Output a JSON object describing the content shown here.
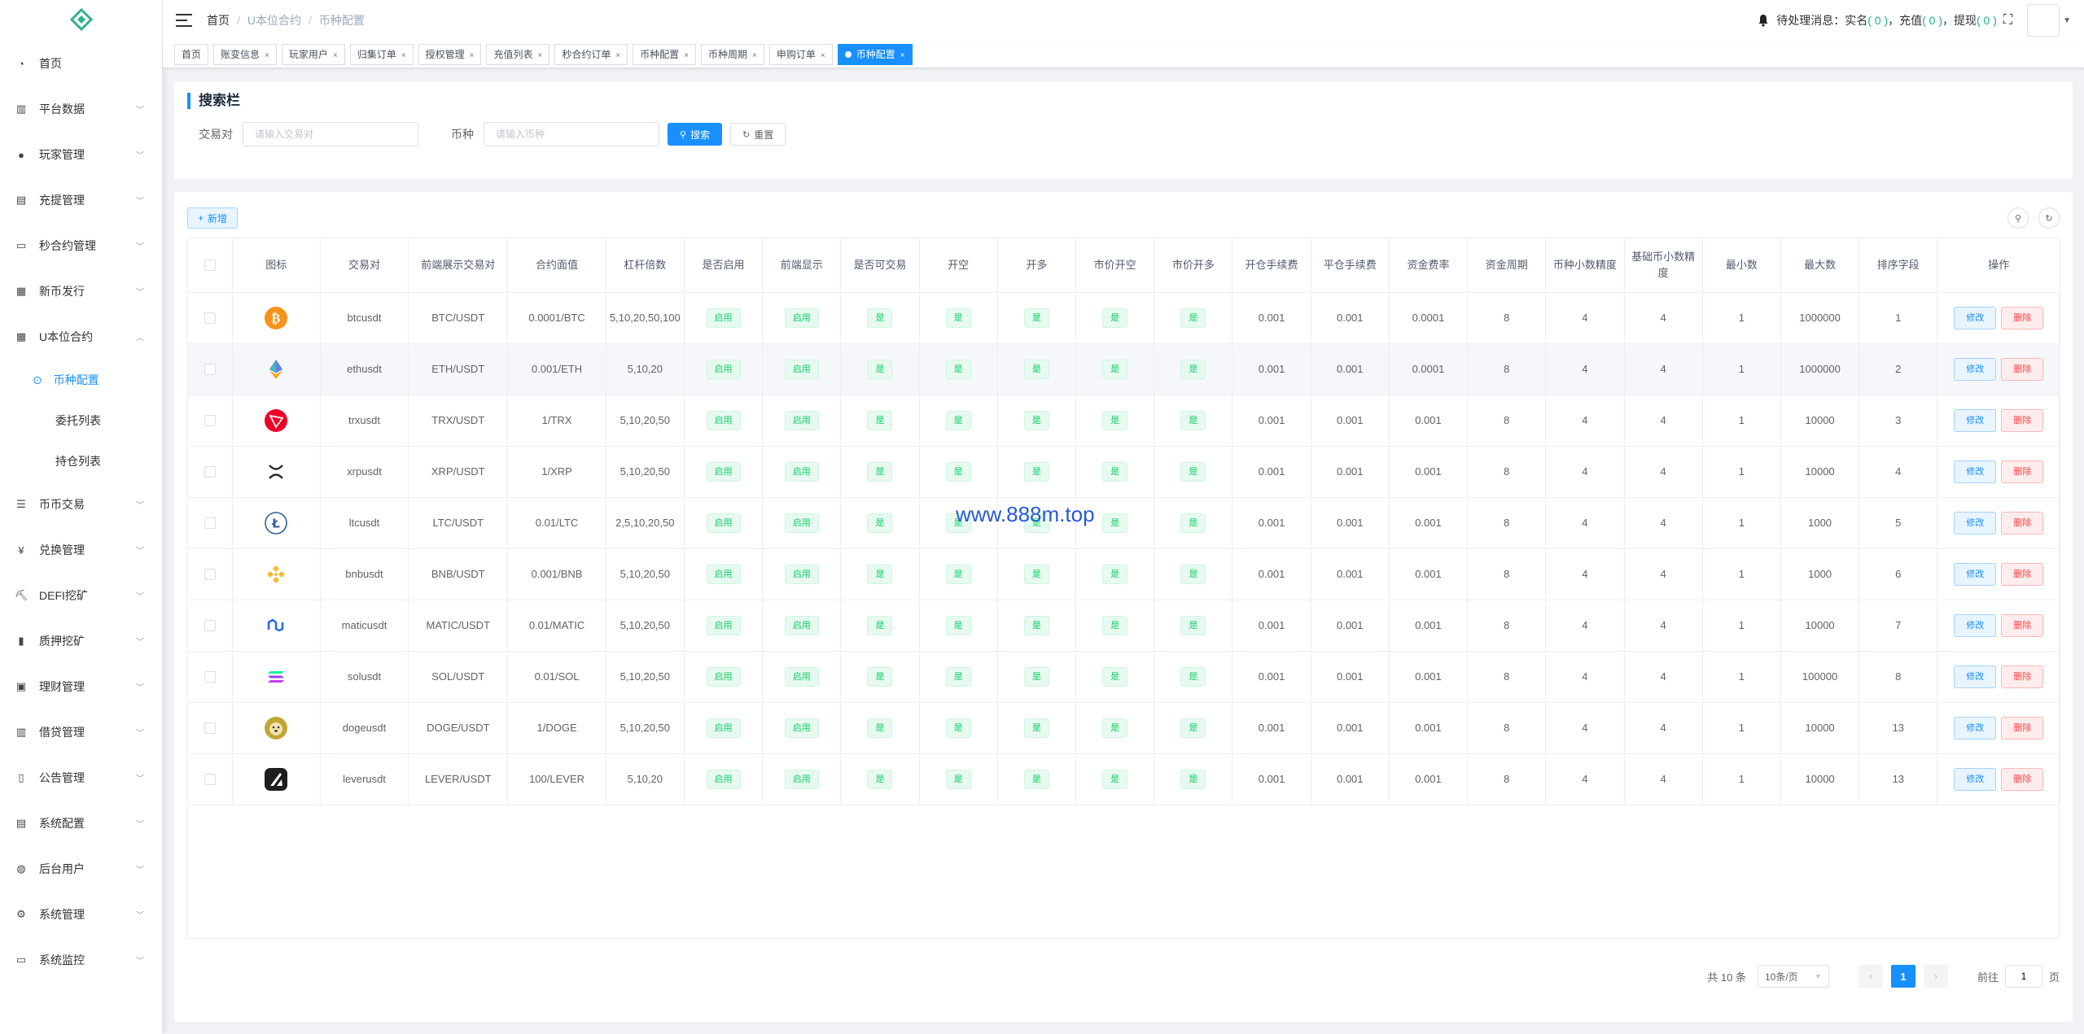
{
  "sidebar": {
    "items": [
      {
        "label": "首页",
        "icon": "dashboard-icon",
        "arrow": false
      },
      {
        "label": "平台数据",
        "icon": "chart-icon",
        "arrow": true
      },
      {
        "label": "玩家管理",
        "icon": "user-icon",
        "arrow": true
      },
      {
        "label": "充提管理",
        "icon": "wallet-icon",
        "arrow": true
      },
      {
        "label": "秒合约管理",
        "icon": "monitor-icon",
        "arrow": true
      },
      {
        "label": "新币发行",
        "icon": "coin-icon",
        "arrow": true
      },
      {
        "label": "U本位合约",
        "icon": "grid-icon",
        "arrow": true,
        "expanded": true
      }
    ],
    "submenu": [
      {
        "label": "币种配置",
        "active": true
      },
      {
        "label": "委托列表",
        "active": false
      },
      {
        "label": "持仓列表",
        "active": false
      }
    ],
    "items_after": [
      {
        "label": "币币交易",
        "icon": "list-icon"
      },
      {
        "label": "兑换管理",
        "icon": "yen-icon"
      },
      {
        "label": "DEFI挖矿",
        "icon": "mining-icon"
      },
      {
        "label": "质押挖矿",
        "icon": "bar-chart-icon"
      },
      {
        "label": "理财管理",
        "icon": "finance-icon"
      },
      {
        "label": "借贷管理",
        "icon": "loan-icon"
      },
      {
        "label": "公告管理",
        "icon": "book-icon"
      },
      {
        "label": "系统配置",
        "icon": "config-icon"
      },
      {
        "label": "后台用户",
        "icon": "admin-user-icon"
      },
      {
        "label": "系统管理",
        "icon": "gear-icon"
      },
      {
        "label": "系统监控",
        "icon": "monitor-icon"
      }
    ]
  },
  "header": {
    "breadcrumb": [
      "首页",
      "U本位合约",
      "币种配置"
    ],
    "pending_label": "待处理消息：",
    "realname_label": "实名",
    "realname_count": "( 0 )",
    "recharge_label": "充值",
    "recharge_count": "( 0 )",
    "withdraw_label": "提现",
    "withdraw_count": "( 0 )",
    "sep": "，"
  },
  "tags": [
    {
      "label": "账变信息",
      "active": false
    },
    {
      "label": "玩家用户",
      "active": false
    },
    {
      "label": "归集订单",
      "active": false
    },
    {
      "label": "授权管理",
      "active": false
    },
    {
      "label": "充值列表",
      "active": false
    },
    {
      "label": "秒合约订单",
      "active": false
    },
    {
      "label": "币种配置",
      "active": false
    },
    {
      "label": "币种周期",
      "active": false
    },
    {
      "label": "申购订单",
      "active": false
    },
    {
      "label": "币种配置",
      "active": true
    }
  ],
  "tags_home": "首页",
  "search": {
    "title": "搜索栏",
    "pair_label": "交易对",
    "pair_placeholder": "请输入交易对",
    "coin_label": "币种",
    "coin_placeholder": "请输入币种",
    "search_button": "搜索",
    "reset_button": "重置"
  },
  "toolbar": {
    "add_button": "新增"
  },
  "table": {
    "headers": [
      "图标",
      "交易对",
      "前端展示交易对",
      "合约面值",
      "杠杆倍数",
      "是否启用",
      "前端显示",
      "是否可交易",
      "开空",
      "开多",
      "市价开空",
      "市价开多",
      "开仓手续费",
      "平仓手续费",
      "资金费率",
      "资金周期",
      "币种小数精度",
      "基础币小数精度",
      "最小数",
      "最大数",
      "排序字段",
      "操作"
    ],
    "enabled_text": "启用",
    "yes_text": "是",
    "edit_text": "修改",
    "delete_text": "删除",
    "rows": [
      {
        "icon": "bitcoin-icon",
        "color": "#f7931a",
        "pair": "btcusdt",
        "display": "BTC/USDT",
        "face": "0.0001/BTC",
        "leverage": "5,10,20,50,100",
        "open_fee": "0.001",
        "close_fee": "0.001",
        "rate": "0.0001",
        "period": "8",
        "coin_prec": "4",
        "base_prec": "4",
        "min": "1",
        "max": "1000000",
        "sort": "1"
      },
      {
        "icon": "ethereum-icon",
        "color": "#627eea",
        "pair": "ethusdt",
        "display": "ETH/USDT",
        "face": "0.001/ETH",
        "leverage": "5,10,20",
        "open_fee": "0.001",
        "close_fee": "0.001",
        "rate": "0.0001",
        "period": "8",
        "coin_prec": "4",
        "base_prec": "4",
        "min": "1",
        "max": "1000000",
        "sort": "2"
      },
      {
        "icon": "tron-icon",
        "color": "#ef0027",
        "pair": "trxusdt",
        "display": "TRX/USDT",
        "face": "1/TRX",
        "leverage": "5,10,20,50",
        "open_fee": "0.001",
        "close_fee": "0.001",
        "rate": "0.001",
        "period": "8",
        "coin_prec": "4",
        "base_prec": "4",
        "min": "1",
        "max": "10000",
        "sort": "3"
      },
      {
        "icon": "xrp-icon",
        "color": "#23292f",
        "pair": "xrpusdt",
        "display": "XRP/USDT",
        "face": "1/XRP",
        "leverage": "5,10,20,50",
        "open_fee": "0.001",
        "close_fee": "0.001",
        "rate": "0.001",
        "period": "8",
        "coin_prec": "4",
        "base_prec": "4",
        "min": "1",
        "max": "10000",
        "sort": "4"
      },
      {
        "icon": "litecoin-icon",
        "color": "#345d9d",
        "pair": "ltcusdt",
        "display": "LTC/USDT",
        "face": "0.01/LTC",
        "leverage": "2,5,10,20,50",
        "open_fee": "0.001",
        "close_fee": "0.001",
        "rate": "0.001",
        "period": "8",
        "coin_prec": "4",
        "base_prec": "4",
        "min": "1",
        "max": "1000",
        "sort": "5"
      },
      {
        "icon": "bnb-icon",
        "color": "#f3ba2f",
        "pair": "bnbusdt",
        "display": "BNB/USDT",
        "face": "0.001/BNB",
        "leverage": "5,10,20,50",
        "open_fee": "0.001",
        "close_fee": "0.001",
        "rate": "0.001",
        "period": "8",
        "coin_prec": "4",
        "base_prec": "4",
        "min": "1",
        "max": "1000",
        "sort": "6"
      },
      {
        "icon": "polygon-icon",
        "color": "#2c6bed",
        "pair": "maticusdt",
        "display": "MATIC/USDT",
        "face": "0.01/MATIC",
        "leverage": "5,10,20,50",
        "open_fee": "0.001",
        "close_fee": "0.001",
        "rate": "0.001",
        "period": "8",
        "coin_prec": "4",
        "base_prec": "4",
        "min": "1",
        "max": "10000",
        "sort": "7"
      },
      {
        "icon": "solana-icon",
        "color": "#9945ff",
        "pair": "solusdt",
        "display": "SOL/USDT",
        "face": "0.01/SOL",
        "leverage": "5,10,20,50",
        "open_fee": "0.001",
        "close_fee": "0.001",
        "rate": "0.001",
        "period": "8",
        "coin_prec": "4",
        "base_prec": "4",
        "min": "1",
        "max": "100000",
        "sort": "8"
      },
      {
        "icon": "dogecoin-icon",
        "color": "#c2a633",
        "pair": "dogeusdt",
        "display": "DOGE/USDT",
        "face": "1/DOGE",
        "leverage": "5,10,20,50",
        "open_fee": "0.001",
        "close_fee": "0.001",
        "rate": "0.001",
        "period": "8",
        "coin_prec": "4",
        "base_prec": "4",
        "min": "1",
        "max": "10000",
        "sort": "13"
      },
      {
        "icon": "lever-icon",
        "color": "#1e1e1e",
        "pair": "leverusdt",
        "display": "LEVER/USDT",
        "face": "100/LEVER",
        "leverage": "5,10,20",
        "open_fee": "0.001",
        "close_fee": "0.001",
        "rate": "0.001",
        "period": "8",
        "coin_prec": "4",
        "base_prec": "4",
        "min": "1",
        "max": "10000",
        "sort": "13"
      }
    ]
  },
  "watermark": "www.888m.top",
  "pagination": {
    "total": "共 10 条",
    "page_size": "10条/页",
    "current": "1",
    "goto_label": "前往",
    "goto_value": "1",
    "page_suffix": "页"
  }
}
